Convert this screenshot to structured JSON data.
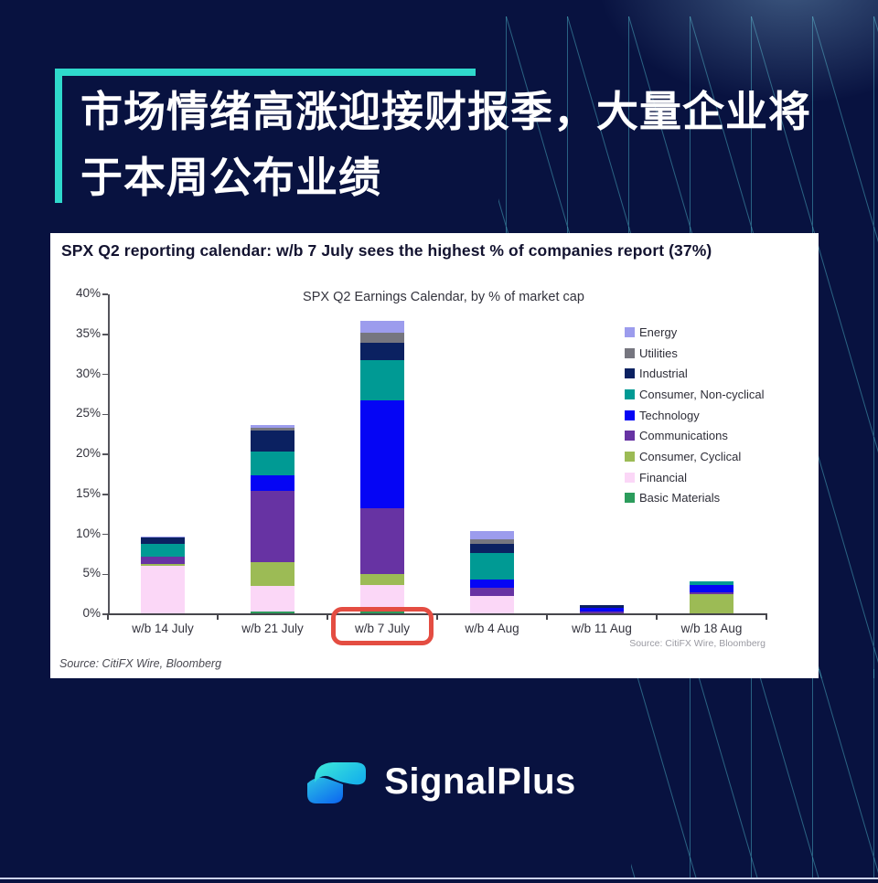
{
  "page": {
    "title_line1": "市场情绪高涨迎接财报季，大量企业将",
    "title_line2": "于本周公布业绩",
    "accent_color": "#2fd9cc",
    "background_color": "#081240",
    "pattern_line_color": "#3a9fae",
    "bottom_line_color": "#ccd2ea"
  },
  "panel": {
    "header": "SPX Q2 reporting calendar: w/b 7 July sees the highest % of companies report (37%)",
    "chart_source": "Source: CitiFX Wire, Bloomberg",
    "panel_source": "Source: CitiFX Wire, Bloomberg"
  },
  "chart_data": {
    "type": "bar",
    "stacked": true,
    "title": "SPX Q2 Earnings Calendar, by % of market cap",
    "categories": [
      "w/b 14 July",
      "w/b 21 July",
      "w/b 7 July",
      "w/b 4 Aug",
      "w/b 11 Aug",
      "w/b 18 Aug"
    ],
    "unit": "%",
    "ylim": [
      0,
      40
    ],
    "ytick_step": 5,
    "yticks": [
      "0%",
      "5%",
      "10%",
      "15%",
      "20%",
      "25%",
      "30%",
      "35%",
      "40%"
    ],
    "grid": false,
    "legend_position": "right",
    "series": [
      {
        "name": "Basic Materials",
        "color": "#2c9c5c",
        "values": [
          0,
          0.4,
          0.3,
          0,
          0,
          0
        ]
      },
      {
        "name": "Financial",
        "color": "#fbd7f7",
        "values": [
          6.1,
          3.2,
          3.4,
          2.3,
          0,
          0
        ]
      },
      {
        "name": "Consumer, Cyclical",
        "color": "#9cbb55",
        "values": [
          0.2,
          2.9,
          1.3,
          0,
          0,
          2.5
        ]
      },
      {
        "name": "Communications",
        "color": "#6733a3",
        "values": [
          0.9,
          8.9,
          8.3,
          1.0,
          0.4,
          0.3
        ]
      },
      {
        "name": "Technology",
        "color": "#0505f5",
        "values": [
          0,
          2.0,
          13.4,
          1.1,
          0.4,
          0.9
        ]
      },
      {
        "name": "Consumer, Non-cyclical",
        "color": "#009a94",
        "values": [
          1.6,
          3.0,
          5.1,
          3.3,
          0,
          0.4
        ]
      },
      {
        "name": "Industrial",
        "color": "#0b2161",
        "values": [
          0.8,
          2.6,
          2.2,
          1.1,
          0.3,
          0
        ]
      },
      {
        "name": "Utilities",
        "color": "#76767f",
        "values": [
          0,
          0.3,
          1.2,
          0.6,
          0,
          0
        ]
      },
      {
        "name": "Energy",
        "color": "#9c9ced",
        "values": [
          0.1,
          0.4,
          1.5,
          1.0,
          0,
          0
        ]
      }
    ],
    "legend_order": [
      "Energy",
      "Utilities",
      "Industrial",
      "Consumer, Non-cyclical",
      "Technology",
      "Communications",
      "Consumer, Cyclical",
      "Financial",
      "Basic Materials"
    ],
    "totals": [
      9.7,
      23.7,
      36.7,
      10.4,
      1.1,
      4.1
    ],
    "highlighted_category": "w/b 7 July",
    "highlight_color": "#e44d42"
  },
  "footer": {
    "brand": "SignalPlus"
  }
}
